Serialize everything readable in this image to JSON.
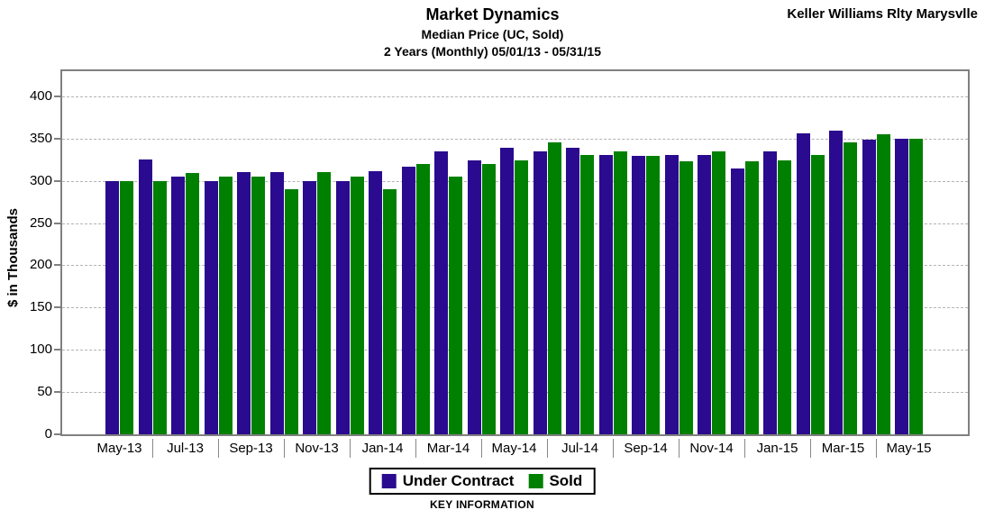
{
  "header": {
    "title": "Market Dynamics",
    "subtitle1": "Median Price (UC, Sold)",
    "subtitle2": "2 Years (Monthly) 05/01/13 - 05/31/15",
    "brand": "Keller Williams Rlty Marysvlle"
  },
  "footer": {
    "key_information": "KEY INFORMATION"
  },
  "colors": {
    "under_contract": "#2A0A8E",
    "sold": "#008000",
    "plot_border": "#808080",
    "gridline": "#B3B3B3"
  },
  "chart_data": {
    "type": "bar",
    "title": "Market Dynamics",
    "subtitle": "Median Price (UC, Sold)",
    "period": "2 Years (Monthly) 05/01/13 - 05/31/15",
    "xlabel": "",
    "ylabel": "$ in Thousands",
    "ylim": [
      0,
      432
    ],
    "yticks": [
      0,
      50,
      100,
      150,
      200,
      250,
      300,
      350,
      400
    ],
    "grid": true,
    "legend_position": "bottom",
    "categories": [
      "May-13",
      "Jun-13",
      "Jul-13",
      "Aug-13",
      "Sep-13",
      "Oct-13",
      "Nov-13",
      "Dec-13",
      "Jan-14",
      "Feb-14",
      "Mar-14",
      "Apr-14",
      "May-14",
      "Jun-14",
      "Jul-14",
      "Aug-14",
      "Sep-14",
      "Oct-14",
      "Nov-14",
      "Dec-14",
      "Jan-15",
      "Feb-15",
      "Mar-15",
      "Apr-15",
      "May-15"
    ],
    "x_tick_labels": [
      "May-13",
      "Jul-13",
      "Sep-13",
      "Nov-13",
      "Jan-14",
      "Mar-14",
      "May-14",
      "Jul-14",
      "Sep-14",
      "Nov-14",
      "Jan-15",
      "Mar-15",
      "May-15"
    ],
    "series": [
      {
        "name": "Under Contract",
        "color": "#2A0A8E",
        "values": [
          300,
          325,
          305,
          300,
          310,
          310,
          300,
          300,
          311,
          317,
          335,
          324,
          339,
          335,
          339,
          330,
          329,
          330,
          330,
          314,
          335,
          356,
          359,
          349,
          350
        ]
      },
      {
        "name": "Sold",
        "color": "#008000",
        "values": [
          300,
          300,
          309,
          305,
          305,
          290,
          310,
          305,
          290,
          320,
          305,
          320,
          324,
          345,
          330,
          335,
          329,
          323,
          335,
          323,
          324,
          330,
          345,
          355,
          350
        ]
      }
    ]
  }
}
